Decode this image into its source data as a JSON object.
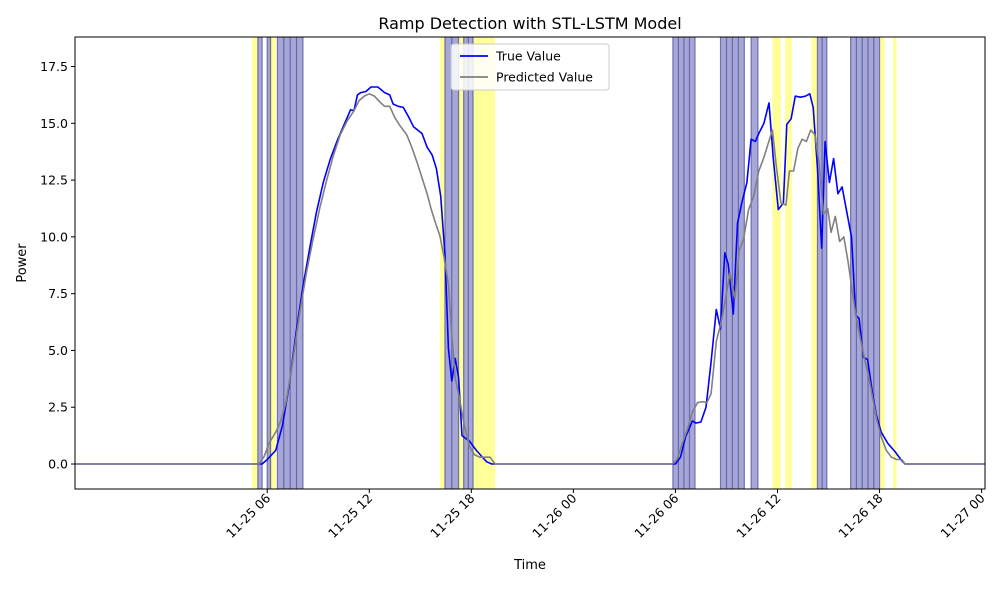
{
  "chart_data": {
    "type": "line",
    "title": "Ramp Detection with STL-LSTM Model",
    "xlabel": "Time",
    "ylabel": "Power",
    "x_unit": "hours since 11-25 00",
    "xlim": [
      -5.3,
      48.2
    ],
    "ylim": [
      -1.1,
      18.8
    ],
    "grid": false,
    "legend_position": "top-center",
    "x_ticks": [
      {
        "value": 6,
        "label": "11-25 06"
      },
      {
        "value": 12,
        "label": "11-25 12"
      },
      {
        "value": 18,
        "label": "11-25 18"
      },
      {
        "value": 24,
        "label": "11-26 00"
      },
      {
        "value": 30,
        "label": "11-26 06"
      },
      {
        "value": 36,
        "label": "11-26 12"
      },
      {
        "value": 42,
        "label": "11-26 18"
      },
      {
        "value": 48,
        "label": "11-27 00"
      }
    ],
    "y_ticks": [
      {
        "value": 0,
        "label": "0.0"
      },
      {
        "value": 2.5,
        "label": "2.5"
      },
      {
        "value": 5,
        "label": "5.0"
      },
      {
        "value": 7.5,
        "label": "7.5"
      },
      {
        "value": 10,
        "label": "10.0"
      },
      {
        "value": 12.5,
        "label": "12.5"
      },
      {
        "value": 15,
        "label": "15.0"
      },
      {
        "value": 17.5,
        "label": "17.5"
      }
    ],
    "yellow_spans": [
      [
        5.1,
        5.45
      ],
      [
        6.1,
        6.5
      ],
      [
        16.15,
        16.45
      ],
      [
        17.2,
        17.6
      ],
      [
        18.1,
        19.4
      ],
      [
        35.7,
        36.2
      ],
      [
        36.45,
        36.85
      ],
      [
        38.0,
        38.35
      ],
      [
        42.0,
        42.3
      ],
      [
        42.8,
        43.0
      ]
    ],
    "ramp_spans": [
      [
        5.45,
        5.7
      ],
      [
        6.0,
        6.2
      ],
      [
        6.6,
        8.1
      ],
      [
        16.45,
        17.25
      ],
      [
        17.55,
        18.1
      ],
      [
        29.85,
        31.15
      ],
      [
        32.65,
        34.05
      ],
      [
        34.45,
        34.85
      ],
      [
        38.35,
        38.9
      ],
      [
        40.3,
        42.0
      ]
    ],
    "series": [
      {
        "name": "True Value",
        "color": "#0000ff",
        "points": [
          [
            -5.3,
            0
          ],
          [
            5.7,
            0
          ],
          [
            6.0,
            0.2
          ],
          [
            6.5,
            0.6
          ],
          [
            6.9,
            1.7
          ],
          [
            7.3,
            3.5
          ],
          [
            7.7,
            5.8
          ],
          [
            8.1,
            7.8
          ],
          [
            8.5,
            9.5
          ],
          [
            8.9,
            11.1
          ],
          [
            9.3,
            12.4
          ],
          [
            9.7,
            13.4
          ],
          [
            10.1,
            14.2
          ],
          [
            10.5,
            14.9
          ],
          [
            10.9,
            15.6
          ],
          [
            11.1,
            15.55
          ],
          [
            11.3,
            16.25
          ],
          [
            11.5,
            16.35
          ],
          [
            11.8,
            16.4
          ],
          [
            12.1,
            16.6
          ],
          [
            12.5,
            16.6
          ],
          [
            12.9,
            16.35
          ],
          [
            13.2,
            16.25
          ],
          [
            13.4,
            15.85
          ],
          [
            13.7,
            15.75
          ],
          [
            14.0,
            15.7
          ],
          [
            14.3,
            15.3
          ],
          [
            14.6,
            14.85
          ],
          [
            15.1,
            14.55
          ],
          [
            15.4,
            13.95
          ],
          [
            15.7,
            13.6
          ],
          [
            15.95,
            13.0
          ],
          [
            16.2,
            11.8
          ],
          [
            16.45,
            9.2
          ],
          [
            16.65,
            5.1
          ],
          [
            16.85,
            3.65
          ],
          [
            17.05,
            4.65
          ],
          [
            17.25,
            3.8
          ],
          [
            17.45,
            1.25
          ],
          [
            17.9,
            1.0
          ],
          [
            18.3,
            0.6
          ],
          [
            18.6,
            0.35
          ],
          [
            18.9,
            0.1
          ],
          [
            19.2,
            0
          ],
          [
            30.0,
            0
          ],
          [
            30.3,
            0.3
          ],
          [
            30.6,
            1.2
          ],
          [
            31.0,
            1.9
          ],
          [
            31.2,
            1.8
          ],
          [
            31.5,
            1.85
          ],
          [
            31.8,
            2.5
          ],
          [
            32.1,
            4.5
          ],
          [
            32.4,
            6.8
          ],
          [
            32.65,
            5.95
          ],
          [
            32.9,
            9.3
          ],
          [
            33.1,
            8.8
          ],
          [
            33.4,
            6.6
          ],
          [
            33.65,
            10.6
          ],
          [
            33.9,
            11.5
          ],
          [
            34.2,
            12.4
          ],
          [
            34.45,
            14.3
          ],
          [
            34.7,
            14.2
          ],
          [
            34.9,
            14.55
          ],
          [
            35.2,
            15.0
          ],
          [
            35.5,
            15.9
          ],
          [
            35.75,
            13.5
          ],
          [
            36.05,
            11.2
          ],
          [
            36.35,
            11.5
          ],
          [
            36.55,
            14.95
          ],
          [
            36.8,
            15.2
          ],
          [
            37.05,
            16.2
          ],
          [
            37.35,
            16.15
          ],
          [
            37.65,
            16.2
          ],
          [
            37.9,
            16.3
          ],
          [
            38.1,
            15.7
          ],
          [
            38.35,
            13.0
          ],
          [
            38.6,
            9.5
          ],
          [
            38.8,
            14.2
          ],
          [
            39.05,
            12.4
          ],
          [
            39.3,
            13.45
          ],
          [
            39.55,
            11.9
          ],
          [
            39.8,
            12.2
          ],
          [
            40.1,
            11.0
          ],
          [
            40.35,
            10.0
          ],
          [
            40.6,
            6.55
          ],
          [
            40.8,
            6.4
          ],
          [
            41.05,
            4.7
          ],
          [
            41.3,
            4.6
          ],
          [
            41.55,
            3.3
          ],
          [
            41.8,
            2.2
          ],
          [
            42.1,
            1.4
          ],
          [
            42.5,
            0.9
          ],
          [
            42.9,
            0.55
          ],
          [
            43.3,
            0.15
          ],
          [
            43.5,
            0
          ],
          [
            48.2,
            0
          ]
        ]
      },
      {
        "name": "Predicted Value",
        "color": "#808080",
        "points": [
          [
            -5.3,
            0
          ],
          [
            5.5,
            0
          ],
          [
            5.8,
            0.3
          ],
          [
            6.1,
            0.9
          ],
          [
            6.5,
            1.4
          ],
          [
            6.8,
            1.9
          ],
          [
            7.1,
            2.7
          ],
          [
            7.5,
            4.5
          ],
          [
            7.9,
            6.6
          ],
          [
            8.3,
            8.4
          ],
          [
            8.7,
            9.9
          ],
          [
            9.1,
            11.3
          ],
          [
            9.5,
            12.5
          ],
          [
            9.9,
            13.6
          ],
          [
            10.3,
            14.5
          ],
          [
            10.7,
            15.1
          ],
          [
            11.1,
            15.55
          ],
          [
            11.4,
            16.0
          ],
          [
            11.7,
            16.2
          ],
          [
            12.0,
            16.3
          ],
          [
            12.3,
            16.2
          ],
          [
            12.6,
            15.95
          ],
          [
            12.9,
            15.75
          ],
          [
            13.2,
            15.75
          ],
          [
            13.5,
            15.25
          ],
          [
            13.8,
            14.9
          ],
          [
            14.2,
            14.5
          ],
          [
            14.5,
            13.95
          ],
          [
            14.8,
            13.3
          ],
          [
            15.1,
            12.6
          ],
          [
            15.4,
            11.9
          ],
          [
            15.65,
            11.2
          ],
          [
            15.9,
            10.6
          ],
          [
            16.15,
            10.05
          ],
          [
            16.4,
            9.1
          ],
          [
            16.65,
            7.9
          ],
          [
            16.85,
            5.7
          ],
          [
            17.05,
            3.8
          ],
          [
            17.3,
            2.9
          ],
          [
            17.55,
            1.85
          ],
          [
            17.9,
            0.75
          ],
          [
            18.2,
            0.4
          ],
          [
            18.5,
            0.3
          ],
          [
            18.8,
            0.3
          ],
          [
            19.1,
            0.3
          ],
          [
            19.4,
            0
          ],
          [
            29.8,
            0
          ],
          [
            30.1,
            0.2
          ],
          [
            30.4,
            0.9
          ],
          [
            30.7,
            1.5
          ],
          [
            31.0,
            2.3
          ],
          [
            31.3,
            2.7
          ],
          [
            31.6,
            2.75
          ],
          [
            31.85,
            2.7
          ],
          [
            32.1,
            3.1
          ],
          [
            32.4,
            5.4
          ],
          [
            32.7,
            6.3
          ],
          [
            32.95,
            7.3
          ],
          [
            33.2,
            8.4
          ],
          [
            33.5,
            7.3
          ],
          [
            33.75,
            9.4
          ],
          [
            34.0,
            9.9
          ],
          [
            34.3,
            11.2
          ],
          [
            34.6,
            11.8
          ],
          [
            34.9,
            12.9
          ],
          [
            35.2,
            13.5
          ],
          [
            35.45,
            14.1
          ],
          [
            35.7,
            14.7
          ],
          [
            35.95,
            13.0
          ],
          [
            36.2,
            11.5
          ],
          [
            36.5,
            11.4
          ],
          [
            36.7,
            12.9
          ],
          [
            36.95,
            12.9
          ],
          [
            37.2,
            13.9
          ],
          [
            37.45,
            14.3
          ],
          [
            37.7,
            14.2
          ],
          [
            37.95,
            14.7
          ],
          [
            38.2,
            14.5
          ],
          [
            38.45,
            13.2
          ],
          [
            38.7,
            11.0
          ],
          [
            38.95,
            11.25
          ],
          [
            39.15,
            10.2
          ],
          [
            39.4,
            10.9
          ],
          [
            39.65,
            9.8
          ],
          [
            39.9,
            10.0
          ],
          [
            40.15,
            8.9
          ],
          [
            40.4,
            7.6
          ],
          [
            40.6,
            6.6
          ],
          [
            40.85,
            5.6
          ],
          [
            41.1,
            4.7
          ],
          [
            41.35,
            3.9
          ],
          [
            41.6,
            2.9
          ],
          [
            41.85,
            1.9
          ],
          [
            42.1,
            1.2
          ],
          [
            42.4,
            0.6
          ],
          [
            42.7,
            0.3
          ],
          [
            43.0,
            0.2
          ],
          [
            43.3,
            0.2
          ],
          [
            43.5,
            0
          ],
          [
            48.2,
            0
          ]
        ]
      }
    ]
  }
}
